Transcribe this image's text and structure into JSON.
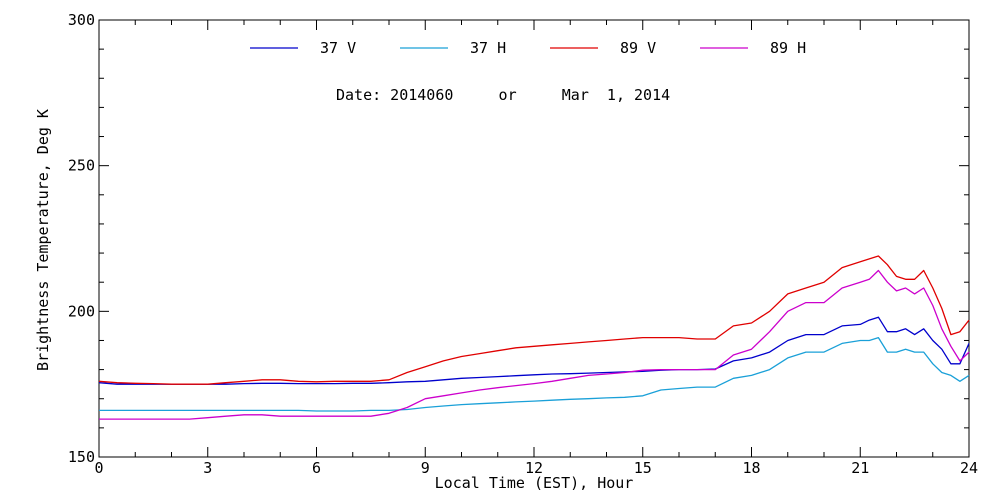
{
  "chart_data": {
    "type": "line",
    "subtitle": "Date: 2014060     or     Mar  1, 2014",
    "xlabel": "Local Time (EST), Hour",
    "ylabel": "Brightness Temperature, Deg K",
    "xlim": [
      0,
      24
    ],
    "ylim": [
      150,
      300
    ],
    "x_ticks": [
      0,
      3,
      6,
      9,
      12,
      15,
      18,
      21,
      24
    ],
    "y_ticks": [
      150,
      200,
      250,
      300
    ],
    "grid": false,
    "legend_position": "top",
    "x": [
      0,
      0.5,
      1,
      1.5,
      2,
      2.5,
      3,
      3.5,
      4,
      4.5,
      5,
      5.5,
      6,
      6.5,
      7,
      7.5,
      8,
      8.5,
      9,
      9.5,
      10,
      10.5,
      11,
      11.5,
      12,
      12.5,
      13,
      13.5,
      14,
      14.5,
      15,
      15.5,
      16,
      16.5,
      17,
      17.5,
      18,
      18.5,
      19,
      19.5,
      20,
      20.5,
      21,
      21.25,
      21.5,
      21.75,
      22,
      22.25,
      22.5,
      22.75,
      23,
      23.25,
      23.5,
      23.75,
      24
    ],
    "series": [
      {
        "name": "37 V",
        "color": "#0000cc",
        "values": [
          175.5,
          175,
          175,
          175,
          175,
          175,
          175,
          175,
          175.2,
          175.3,
          175.3,
          175.2,
          175.2,
          175.2,
          175.3,
          175.3,
          175.5,
          175.8,
          176,
          176.5,
          177,
          177.3,
          177.6,
          177.9,
          178.2,
          178.5,
          178.6,
          178.8,
          179,
          179.2,
          179.4,
          179.8,
          180,
          180,
          180.2,
          183,
          184,
          186,
          190,
          192,
          192,
          195,
          195.5,
          197,
          198,
          193,
          193,
          194,
          192,
          194,
          190,
          187,
          182,
          182,
          189
        ]
      },
      {
        "name": "37 H",
        "color": "#1aa0d8",
        "values": [
          166,
          166,
          166,
          166,
          166,
          166,
          166,
          166,
          166,
          166,
          166,
          166,
          165.8,
          165.8,
          165.8,
          166,
          166,
          166.3,
          167,
          167.5,
          168,
          168.3,
          168.6,
          168.9,
          169.2,
          169.5,
          169.8,
          170,
          170.3,
          170.5,
          171,
          173,
          173.5,
          174,
          174,
          177,
          178,
          180,
          184,
          186,
          186,
          189,
          190,
          190,
          191,
          186,
          186,
          187,
          186,
          186,
          182,
          179,
          178,
          176,
          178
        ]
      },
      {
        "name": "89 V",
        "color": "#e00000",
        "values": [
          176,
          175.5,
          175.3,
          175.2,
          175,
          175,
          175,
          175.5,
          176,
          176.5,
          176.5,
          176,
          175.8,
          176,
          176,
          176,
          176.5,
          179,
          181,
          183,
          184.5,
          185.5,
          186.5,
          187.5,
          188,
          188.5,
          189,
          189.5,
          190,
          190.5,
          191,
          191,
          191,
          190.5,
          190.5,
          195,
          196,
          200,
          206,
          208,
          210,
          215,
          217,
          218,
          219,
          216,
          212,
          211,
          211,
          214,
          208,
          201,
          192,
          193,
          197
        ]
      },
      {
        "name": "89 H",
        "color": "#cc00cc",
        "values": [
          163,
          163,
          163,
          163,
          163,
          163,
          163.5,
          164,
          164.5,
          164.5,
          164,
          164,
          164,
          164,
          164,
          164,
          165,
          167,
          170,
          171,
          172,
          173,
          173.8,
          174.5,
          175.2,
          176,
          177,
          178,
          178.5,
          179,
          179.8,
          180,
          180,
          180,
          180,
          185,
          187,
          193,
          200,
          203,
          203,
          208,
          210,
          211,
          214,
          210,
          207,
          208,
          206,
          208,
          202,
          194,
          188,
          183,
          186
        ]
      }
    ]
  }
}
